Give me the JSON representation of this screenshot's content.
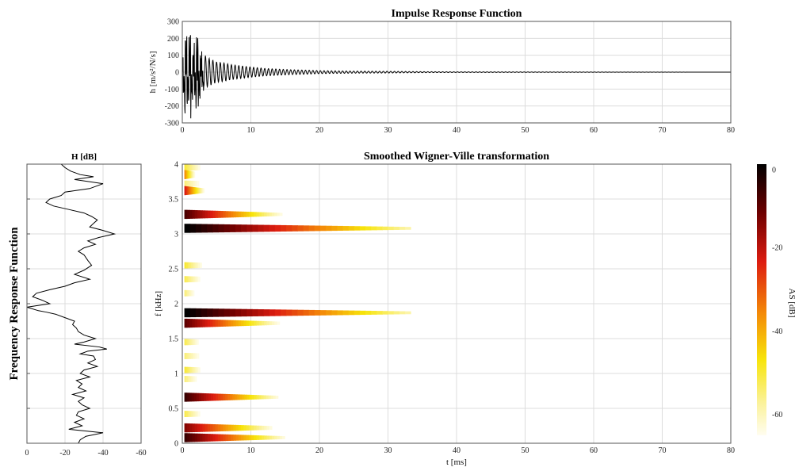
{
  "chart_data": [
    {
      "type": "line",
      "title": "Impulse Response Function",
      "xlabel": "",
      "ylabel": "h [m/s²/N/s]",
      "xlim": [
        0,
        80
      ],
      "ylim": [
        -300,
        300
      ],
      "xticks": [
        "0",
        "10",
        "20",
        "30",
        "40",
        "50",
        "60",
        "70",
        "80"
      ],
      "yticks": [
        "300",
        "200",
        "100",
        "0",
        "-100",
        "-200",
        "-300"
      ],
      "grid": true,
      "series": [
        {
          "x": [
            0,
            0.3,
            0.6,
            0.9,
            1.2,
            1.5,
            1.8,
            2.1,
            2.4,
            2.7,
            3.0,
            3.5,
            4,
            4.5,
            5,
            6,
            7,
            8,
            9,
            10,
            12,
            14,
            16,
            18,
            20,
            25,
            30,
            35,
            40,
            50,
            60,
            70,
            80
          ],
          "values": [
            0,
            280,
            -250,
            200,
            -300,
            160,
            -180,
            250,
            -210,
            130,
            -120,
            90,
            -80,
            70,
            -60,
            55,
            -45,
            40,
            -35,
            30,
            -22,
            18,
            -14,
            12,
            -9,
            6,
            -5,
            3,
            -2,
            1.5,
            -1,
            0.5,
            0
          ]
        }
      ]
    },
    {
      "type": "heatmap",
      "title": "Smoothed Wigner-Ville transformation",
      "xlabel": "t [ms]",
      "ylabel": "f [kHz]",
      "xlim": [
        0,
        80
      ],
      "ylim": [
        0,
        4
      ],
      "xticks": [
        "0",
        "10",
        "20",
        "30",
        "40",
        "50",
        "60",
        "70",
        "80"
      ],
      "yticks": [
        "4",
        "3.5",
        "3",
        "2.5",
        "2",
        "1.5",
        "1",
        "0.5",
        "0"
      ],
      "colorbar": {
        "label": "AS [dB]",
        "ticks": [
          "0",
          "-20",
          "-40",
          "-60"
        ],
        "range": [
          -65,
          0
        ]
      },
      "bands": [
        {
          "f": 3.08,
          "t_end": 33,
          "level": 0
        },
        {
          "f": 1.87,
          "t_end": 33,
          "level": 0
        },
        {
          "f": 3.28,
          "t_end": 15,
          "level": -8
        },
        {
          "f": 1.72,
          "t_end": 15,
          "level": -10
        },
        {
          "f": 0.66,
          "t_end": 14,
          "level": -6
        },
        {
          "f": 0.22,
          "t_end": 15,
          "level": -14
        },
        {
          "f": 0.08,
          "t_end": 15,
          "level": -6
        },
        {
          "f": 3.62,
          "t_end": 4,
          "level": -22
        },
        {
          "f": 3.85,
          "t_end": 3,
          "level": -35
        }
      ],
      "speckles": [
        {
          "f": 3.95,
          "t_end": 9,
          "level": -50
        },
        {
          "f": 3.72,
          "t_end": 12,
          "level": -55
        },
        {
          "f": 2.55,
          "t_end": 10,
          "level": -50
        },
        {
          "f": 2.35,
          "t_end": 10,
          "level": -52
        },
        {
          "f": 2.15,
          "t_end": 8,
          "level": -55
        },
        {
          "f": 1.45,
          "t_end": 9,
          "level": -52
        },
        {
          "f": 1.25,
          "t_end": 12,
          "level": -55
        },
        {
          "f": 1.05,
          "t_end": 9,
          "level": -50
        },
        {
          "f": 0.92,
          "t_end": 10,
          "level": -55
        },
        {
          "f": 0.42,
          "t_end": 10,
          "level": -52
        }
      ]
    },
    {
      "type": "line",
      "title": "H [dB]",
      "ylabel": "Frequency Response Function",
      "xlim": [
        0,
        -60
      ],
      "xticks": [
        "0",
        "-20",
        "-40",
        "-60"
      ],
      "grid": true,
      "series": [
        {
          "f": [
            4.0,
            3.95,
            3.9,
            3.85,
            3.82,
            3.78,
            3.72,
            3.65,
            3.6,
            3.55,
            3.5,
            3.45,
            3.4,
            3.35,
            3.3,
            3.25,
            3.2,
            3.15,
            3.1,
            3.05,
            3.0,
            2.95,
            2.9,
            2.85,
            2.8,
            2.75,
            2.7,
            2.62,
            2.55,
            2.48,
            2.42,
            2.35,
            2.3,
            2.25,
            2.2,
            2.15,
            2.1,
            2.05,
            2.0,
            1.95,
            1.9,
            1.88,
            1.85,
            1.8,
            1.75,
            1.7,
            1.65,
            1.6,
            1.55,
            1.5,
            1.45,
            1.42,
            1.38,
            1.35,
            1.32,
            1.28,
            1.25,
            1.2,
            1.15,
            1.1,
            1.05,
            1.0,
            0.95,
            0.9,
            0.85,
            0.8,
            0.75,
            0.7,
            0.65,
            0.6,
            0.55,
            0.5,
            0.45,
            0.4,
            0.35,
            0.3,
            0.25,
            0.2,
            0.15,
            0.1,
            0.05,
            0.0
          ],
          "values": [
            -18,
            -20,
            -23,
            -28,
            -35,
            -25,
            -40,
            -33,
            -20,
            -18,
            -12,
            -10,
            -14,
            -22,
            -30,
            -34,
            -37,
            -35,
            -33,
            -40,
            -46,
            -38,
            -32,
            -36,
            -30,
            -27,
            -30,
            -32,
            -34,
            -30,
            -25,
            -33,
            -25,
            -20,
            -12,
            -5,
            -3,
            -8,
            -12,
            0,
            -6,
            -10,
            -15,
            -20,
            -25,
            -24,
            -26,
            -27,
            -30,
            -36,
            -30,
            -25,
            -38,
            -42,
            -32,
            -28,
            -35,
            -36,
            -32,
            -37,
            -30,
            -28,
            -33,
            -26,
            -29,
            -27,
            -31,
            -24,
            -30,
            -27,
            -29,
            -33,
            -27,
            -26,
            -30,
            -25,
            -29,
            -22,
            -40,
            -31,
            -28,
            -27
          ]
        }
      ]
    }
  ]
}
